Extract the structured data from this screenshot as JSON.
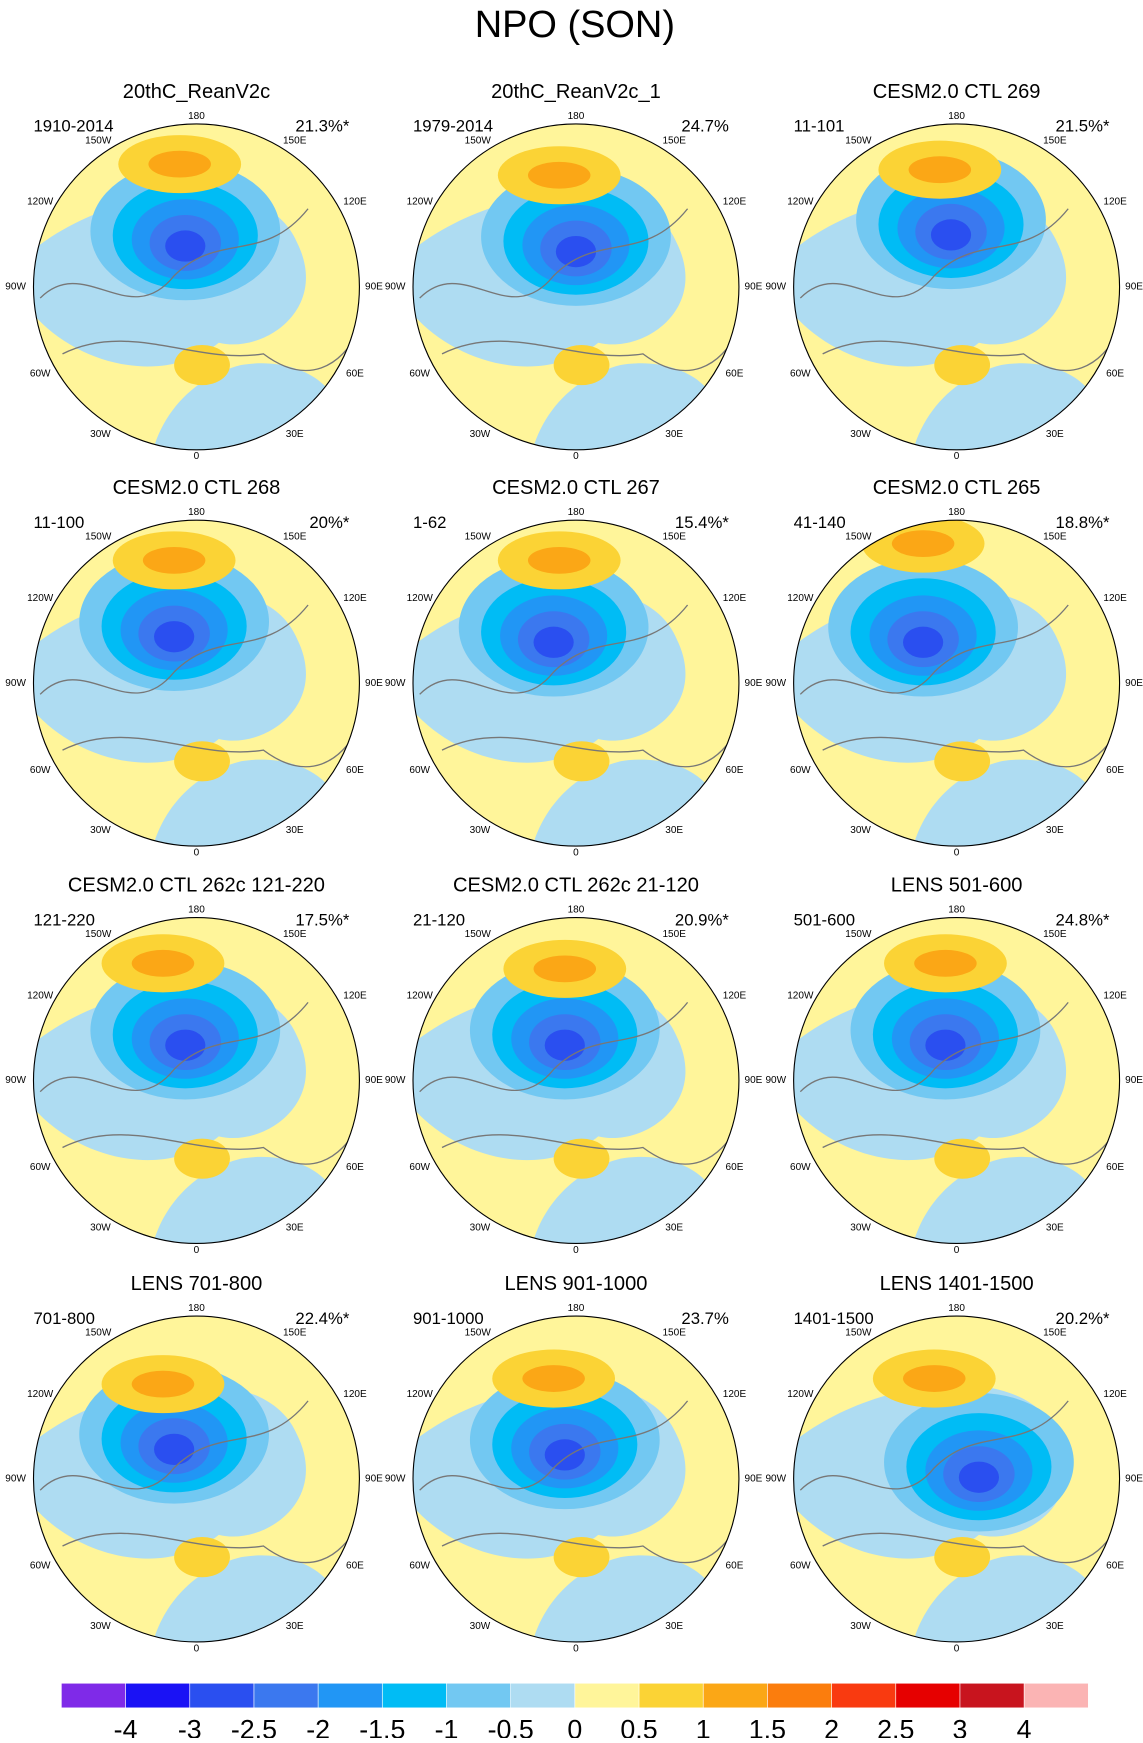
{
  "title": "NPO (SON)",
  "longitude_labels": [
    "180",
    "150W",
    "150E",
    "120W",
    "120E",
    "90W",
    "90E",
    "60W",
    "60E",
    "30W",
    "30E",
    "0"
  ],
  "panels": [
    {
      "title": "20thC_ReanV2c",
      "period": "1910-2014",
      "variance": "21.3%*"
    },
    {
      "title": "20thC_ReanV2c_1",
      "period": "1979-2014",
      "variance": "24.7%"
    },
    {
      "title": "CESM2.0 CTL 269",
      "period": "11-101",
      "variance": "21.5%*"
    },
    {
      "title": "CESM2.0 CTL 268",
      "period": "11-100",
      "variance": "20%*"
    },
    {
      "title": "CESM2.0 CTL 267",
      "period": "1-62",
      "variance": "15.4%*"
    },
    {
      "title": "CESM2.0 CTL 265",
      "period": "41-140",
      "variance": "18.8%*"
    },
    {
      "title": "CESM2.0 CTL 262c 121-220",
      "period": "121-220",
      "variance": "17.5%*"
    },
    {
      "title": "CESM2.0 CTL 262c 21-120",
      "period": "21-120",
      "variance": "20.9%*"
    },
    {
      "title": "LENS 501-600",
      "period": "501-600",
      "variance": "24.8%*"
    },
    {
      "title": "LENS 701-800",
      "period": "701-800",
      "variance": "22.4%*"
    },
    {
      "title": "LENS 901-1000",
      "period": "901-1000",
      "variance": "23.7%"
    },
    {
      "title": "LENS 1401-1500",
      "period": "1401-1500",
      "variance": "20.2%*"
    }
  ],
  "colorbar": {
    "colors": [
      "#7f2ae8",
      "#1a12f5",
      "#2a4ff0",
      "#3b78ef",
      "#2196f5",
      "#00bcf5",
      "#72c8f2",
      "#aedcf2",
      "#fff59a",
      "#fbd335",
      "#fba716",
      "#fb7d0d",
      "#f93a10",
      "#e60000",
      "#c8141e",
      "#fbb4b4"
    ],
    "ticks": [
      -4,
      -3,
      -2.5,
      -2,
      -1.5,
      -1,
      -0.5,
      0,
      0.5,
      1,
      1.5,
      2,
      2.5,
      3,
      4
    ]
  }
}
